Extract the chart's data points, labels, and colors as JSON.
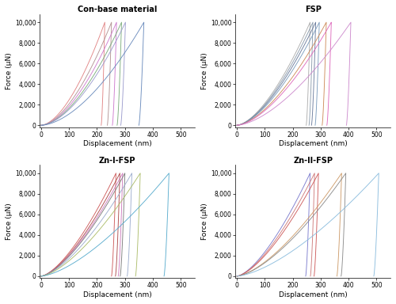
{
  "titles": [
    "Con-base material",
    "FSP",
    "Zn-I-FSP",
    "Zn-II-FSP"
  ],
  "xlabel": "Displacement (nm)",
  "ylabel": "Force (μN)",
  "xlim": [
    -5,
    550
  ],
  "ylim": [
    -200,
    10800
  ],
  "yticks": [
    0,
    2000,
    4000,
    6000,
    8000,
    10000
  ],
  "xticks": [
    0,
    100,
    200,
    300,
    400,
    500
  ],
  "ytick_labels": [
    "0",
    "2,000",
    "4,000",
    "6,000",
    "8,000",
    "10,000"
  ],
  "figsize": [
    5.0,
    3.84
  ],
  "dpi": 100,
  "panels": {
    "Con-base material": {
      "curves": [
        {
          "color": "#e08080",
          "x_max": 228,
          "x_res": 215,
          "f_max": 10000,
          "n": 1.7
        },
        {
          "color": "#b09090",
          "x_max": 252,
          "x_res": 237,
          "f_max": 10000,
          "n": 1.7
        },
        {
          "color": "#cc77cc",
          "x_max": 270,
          "x_res": 255,
          "f_max": 10000,
          "n": 1.7
        },
        {
          "color": "#77aa77",
          "x_max": 288,
          "x_res": 272,
          "f_max": 10000,
          "n": 1.7
        },
        {
          "color": "#9999cc",
          "x_max": 302,
          "x_res": 285,
          "f_max": 10000,
          "n": 1.7
        },
        {
          "color": "#6688bb",
          "x_max": 368,
          "x_res": 350,
          "f_max": 10000,
          "n": 1.7
        }
      ]
    },
    "FSP": {
      "curves": [
        {
          "color": "#aaaaaa",
          "x_max": 262,
          "x_res": 248,
          "f_max": 10000,
          "n": 1.6
        },
        {
          "color": "#8899aa",
          "x_max": 272,
          "x_res": 258,
          "f_max": 10000,
          "n": 1.6
        },
        {
          "color": "#667799",
          "x_max": 282,
          "x_res": 267,
          "f_max": 10000,
          "n": 1.6
        },
        {
          "color": "#7799bb",
          "x_max": 295,
          "x_res": 280,
          "f_max": 10000,
          "n": 1.6
        },
        {
          "color": "#cc8855",
          "x_max": 320,
          "x_res": 305,
          "f_max": 10000,
          "n": 1.6
        },
        {
          "color": "#dd66bb",
          "x_max": 338,
          "x_res": 322,
          "f_max": 10000,
          "n": 1.6
        },
        {
          "color": "#cc88cc",
          "x_max": 408,
          "x_res": 392,
          "f_max": 10000,
          "n": 1.6
        }
      ]
    },
    "Zn-I-FSP": {
      "curves": [
        {
          "color": "#cc5555",
          "x_max": 268,
          "x_res": 252,
          "f_max": 10000,
          "n": 1.5
        },
        {
          "color": "#aa4444",
          "x_max": 282,
          "x_res": 266,
          "f_max": 10000,
          "n": 1.5
        },
        {
          "color": "#cc77bb",
          "x_max": 292,
          "x_res": 276,
          "f_max": 10000,
          "n": 1.5
        },
        {
          "color": "#777777",
          "x_max": 300,
          "x_res": 283,
          "f_max": 10000,
          "n": 1.5
        },
        {
          "color": "#99aacc",
          "x_max": 325,
          "x_res": 308,
          "f_max": 10000,
          "n": 1.5
        },
        {
          "color": "#aabb66",
          "x_max": 355,
          "x_res": 338,
          "f_max": 10000,
          "n": 1.5
        },
        {
          "color": "#55aacc",
          "x_max": 458,
          "x_res": 440,
          "f_max": 10000,
          "n": 1.5
        }
      ]
    },
    "Zn-II-FSP": {
      "curves": [
        {
          "color": "#7777cc",
          "x_max": 262,
          "x_res": 246,
          "f_max": 10000,
          "n": 1.5
        },
        {
          "color": "#cc7777",
          "x_max": 278,
          "x_res": 263,
          "f_max": 10000,
          "n": 1.5
        },
        {
          "color": "#cc5555",
          "x_max": 292,
          "x_res": 276,
          "f_max": 10000,
          "n": 1.5
        },
        {
          "color": "#cc9966",
          "x_max": 375,
          "x_res": 358,
          "f_max": 10000,
          "n": 1.5
        },
        {
          "color": "#888888",
          "x_max": 390,
          "x_res": 373,
          "f_max": 10000,
          "n": 1.5
        },
        {
          "color": "#88bbdd",
          "x_max": 508,
          "x_res": 490,
          "f_max": 10000,
          "n": 1.5
        }
      ]
    }
  }
}
